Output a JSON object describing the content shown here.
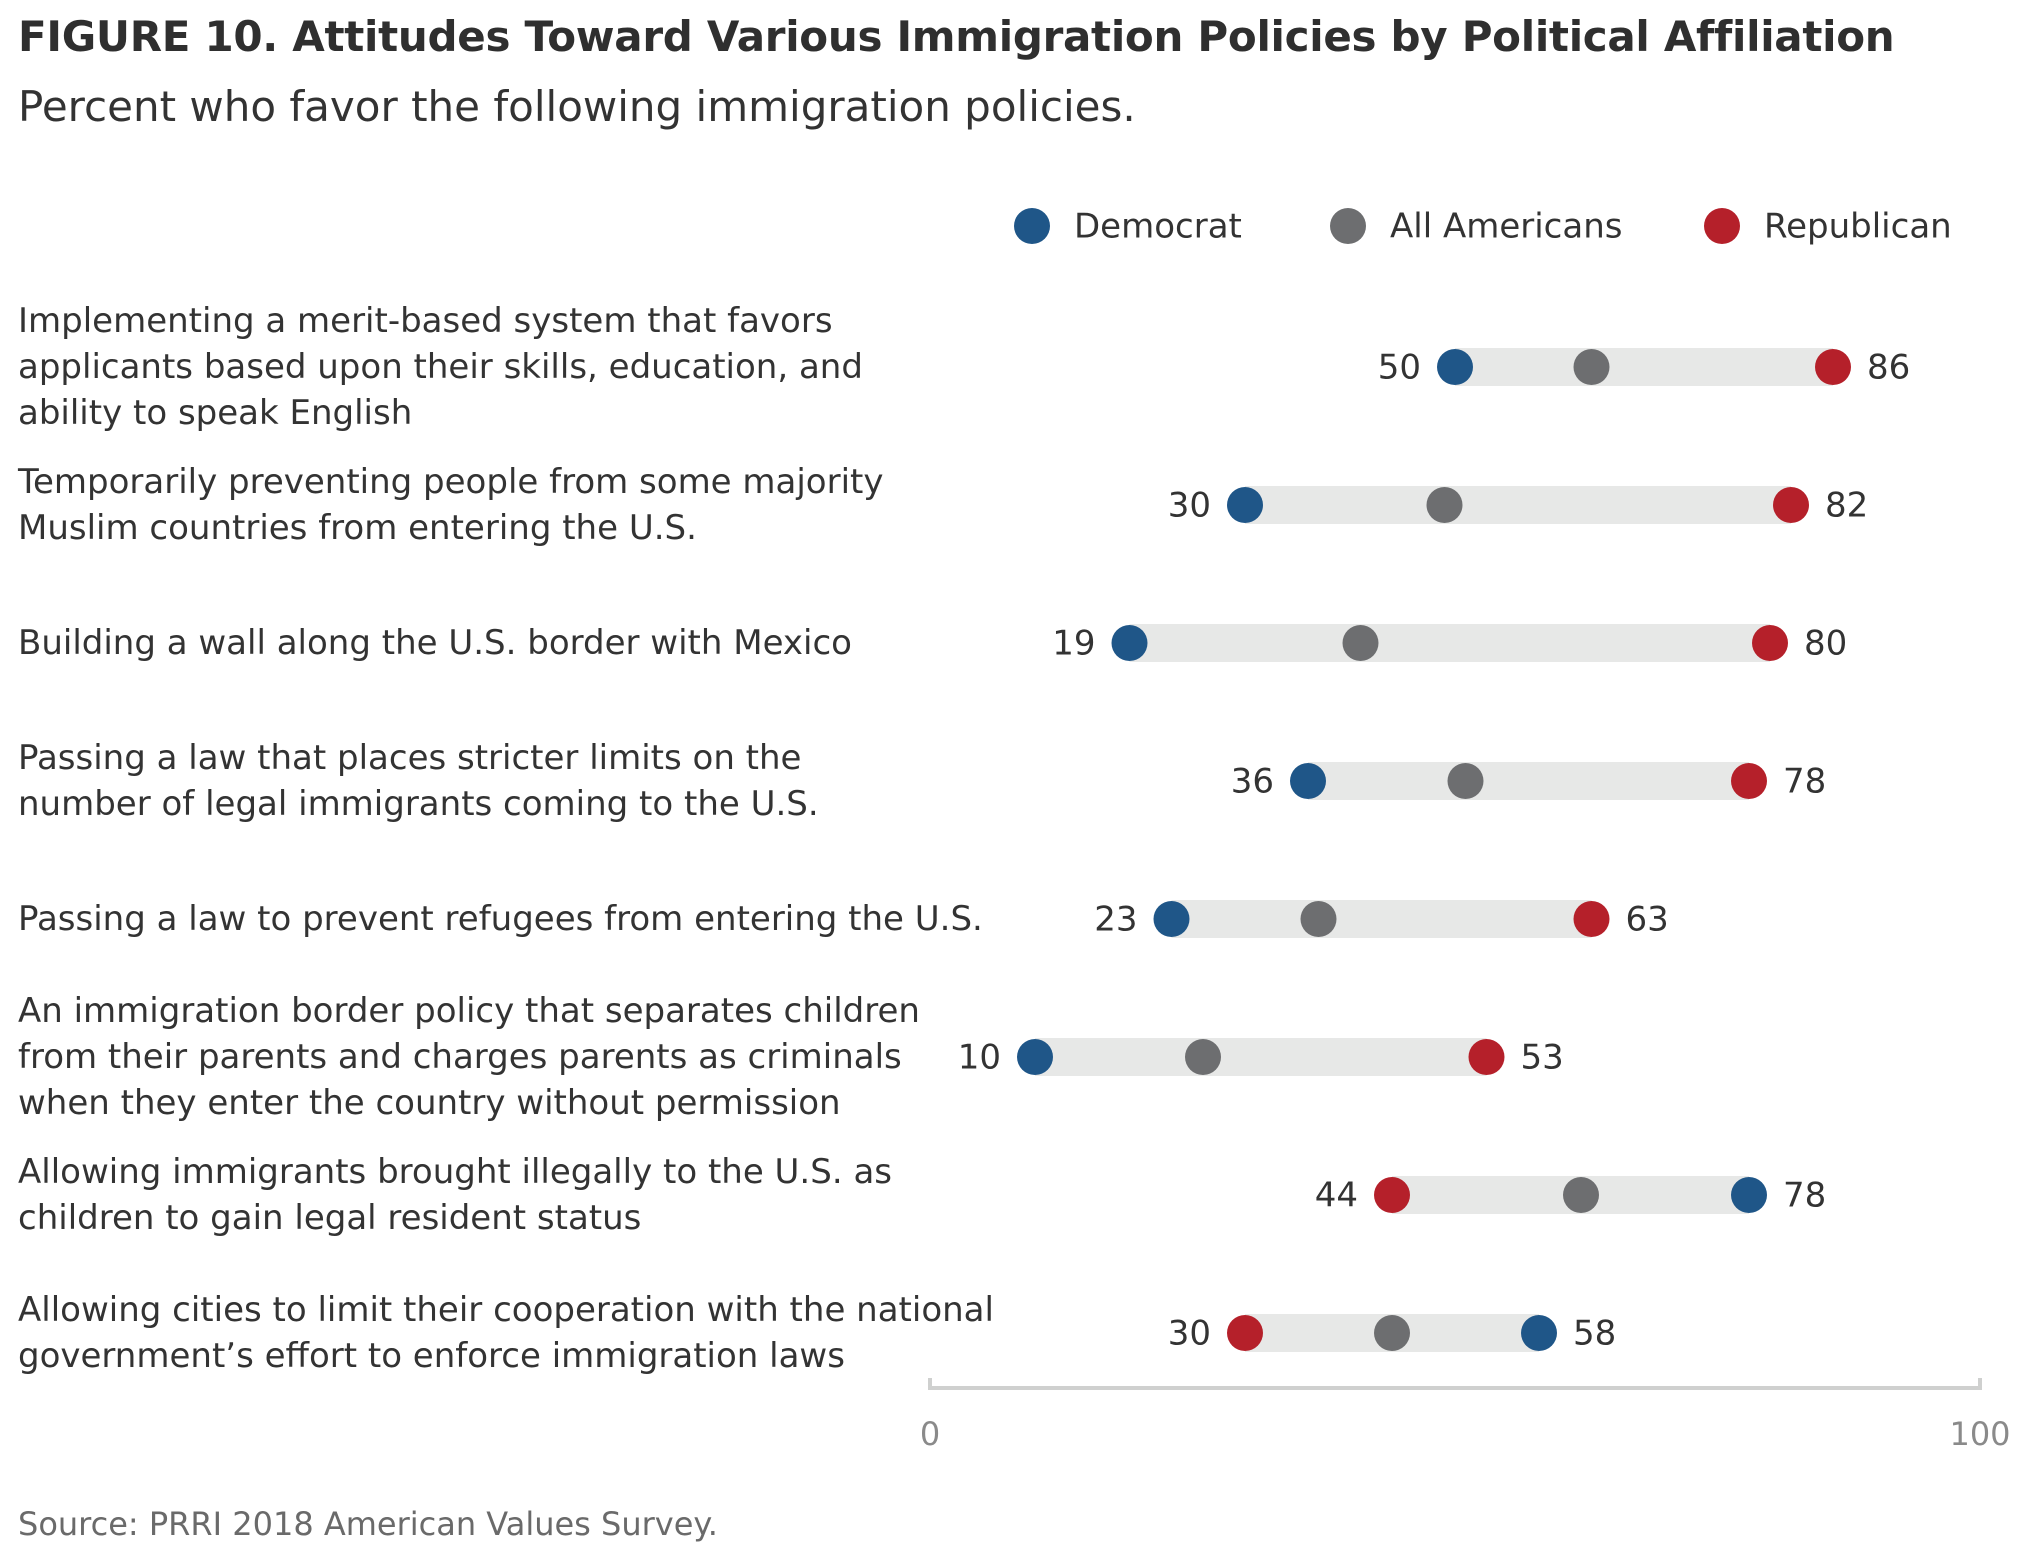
{
  "title": "FIGURE 10.  Attitudes Toward Various Immigration Policies by Political Affiliation",
  "subtitle": "Percent who favor the following immigration policies.",
  "source": "Source: PRRI 2018 American Values Survey.",
  "colors": {
    "democrat": "#1f5688",
    "all": "#6d6e70",
    "republican": "#b5202a",
    "bar": "#e7e8e7",
    "axis": "#cfd0cf"
  },
  "chart_data": {
    "type": "dot",
    "title": "FIGURE 10.  Attitudes Toward Various Immigration Policies by Political Affiliation",
    "subtitle": "Percent who favor the following immigration policies.",
    "xlim": [
      0,
      100
    ],
    "xticks": [
      "0",
      "100"
    ],
    "legend": {
      "placement": "top-right",
      "items": [
        {
          "key": "democrat",
          "label": "Democrat"
        },
        {
          "key": "all",
          "label": "All Americans"
        },
        {
          "key": "republican",
          "label": "Republican"
        }
      ]
    },
    "categories": [
      {
        "lines": [
          "Implementing a merit-based system that favors",
          "applicants based upon their skills, education, and",
          "ability to speak English"
        ],
        "democrat": 50,
        "all": 63,
        "republican": 86
      },
      {
        "lines": [
          "Temporarily preventing people from some majority",
          "Muslim countries from entering the U.S."
        ],
        "democrat": 30,
        "all": 49,
        "republican": 82
      },
      {
        "lines": [
          "Building a wall along the U.S. border with Mexico"
        ],
        "democrat": 19,
        "all": 41,
        "republican": 80
      },
      {
        "lines": [
          "Passing a law that places stricter limits on the",
          "number of legal immigrants coming to the U.S."
        ],
        "democrat": 36,
        "all": 51,
        "republican": 78
      },
      {
        "lines": [
          "Passing a law to prevent refugees from entering the U.S."
        ],
        "democrat": 23,
        "all": 37,
        "republican": 63
      },
      {
        "lines": [
          "An immigration border policy that separates children",
          "from their parents and charges parents as criminals",
          "when they enter the country without permission"
        ],
        "democrat": 10,
        "all": 26,
        "republican": 53
      },
      {
        "lines": [
          "Allowing immigrants brought illegally to the U.S. as",
          "children to gain legal resident status"
        ],
        "democrat": 78,
        "all": 62,
        "republican": 44
      },
      {
        "lines": [
          "Allowing cities to limit their cooperation with the national",
          "government’s effort to enforce immigration laws"
        ],
        "democrat": 58,
        "all": 44,
        "republican": 30
      }
    ]
  }
}
